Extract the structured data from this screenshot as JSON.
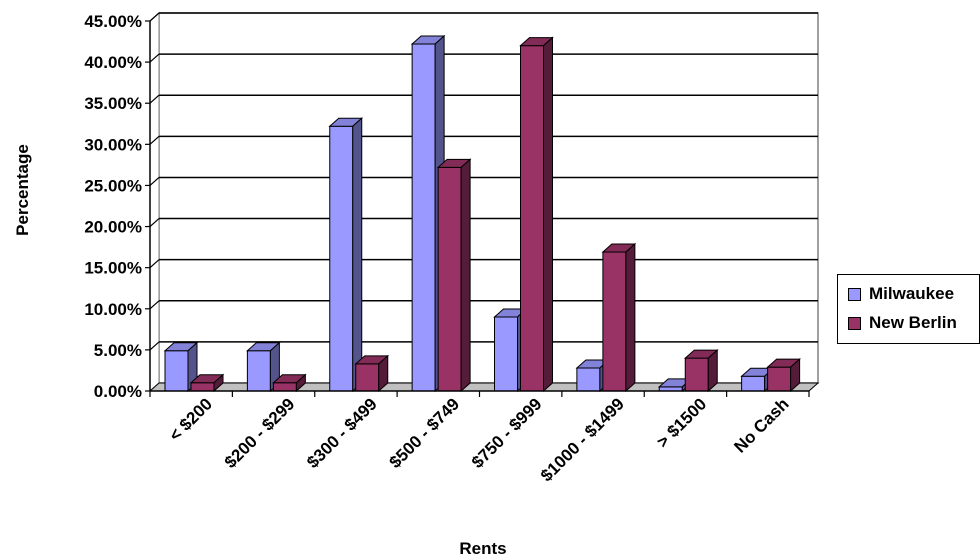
{
  "chart_data": {
    "type": "bar",
    "title": "",
    "xlabel": "Rents",
    "ylabel": "Percentage",
    "categories": [
      "< $200",
      "$200 - $299",
      "$300 - $499",
      "$500 - $749",
      "$750 - $999",
      "$1000 - $1499",
      "> $1500",
      "No Cash"
    ],
    "series": [
      {
        "name": "Milwaukee",
        "color": "#9999ff",
        "values": [
          4.9,
          4.9,
          32.2,
          42.2,
          9.0,
          2.8,
          0.5,
          1.8
        ]
      },
      {
        "name": "New Berlin",
        "color": "#993366",
        "values": [
          1.0,
          1.0,
          3.3,
          27.2,
          42.0,
          16.9,
          4.0,
          2.9
        ]
      }
    ],
    "ylim": [
      0,
      45
    ],
    "yticks": [
      "0.00%",
      "5.00%",
      "10.00%",
      "15.00%",
      "20.00%",
      "25.00%",
      "30.00%",
      "35.00%",
      "40.00%",
      "45.00%"
    ],
    "grid": true,
    "legend": "right",
    "style": "3d-clustered-column"
  }
}
